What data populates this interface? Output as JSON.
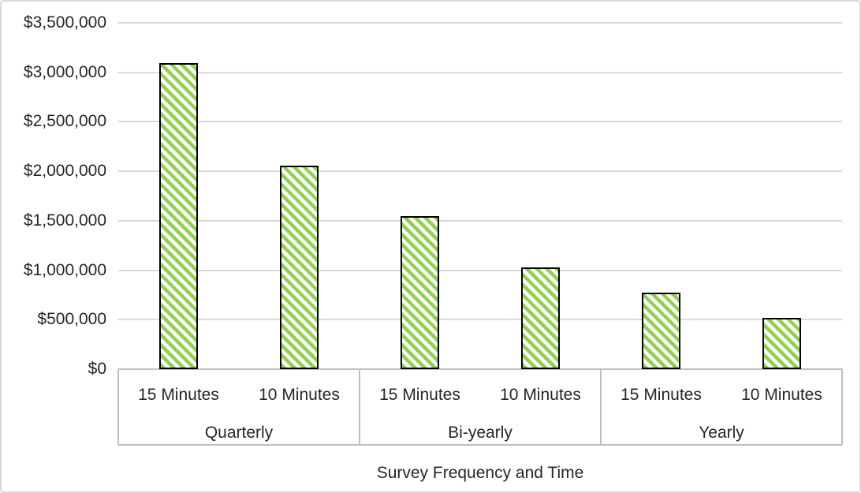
{
  "chart_data": {
    "type": "bar",
    "title": "",
    "xlabel": "Survey Frequency and Time",
    "ylabel": "",
    "ylim": [
      0,
      3500000
    ],
    "ytick_step": 500000,
    "ytick_labels": [
      "$0",
      "$500,000",
      "$1,000,000",
      "$1,500,000",
      "$2,000,000",
      "$2,500,000",
      "$3,000,000",
      "$3,500,000"
    ],
    "grid": true,
    "legend_position": "none",
    "groups": [
      {
        "label": "Quarterly",
        "categories": [
          "15 Minutes",
          "10 Minutes"
        ],
        "values": [
          3090000,
          2060000
        ]
      },
      {
        "label": "Bi-yearly",
        "categories": [
          "15 Minutes",
          "10 Minutes"
        ],
        "values": [
          1545000,
          1030000
        ]
      },
      {
        "label": "Yearly",
        "categories": [
          "15 Minutes",
          "10 Minutes"
        ],
        "values": [
          772500,
          515000
        ]
      }
    ],
    "colors": {
      "bar_stripe": "#92D050",
      "bar_background": "#FFFFFF",
      "bar_border": "#000000",
      "gridline": "#D9D9D9",
      "axis_line": "#BFBFBF",
      "text": "#262626",
      "frame_border": "#D9D9D9"
    },
    "bar_fill_pattern": "light-upward-diagonal"
  }
}
